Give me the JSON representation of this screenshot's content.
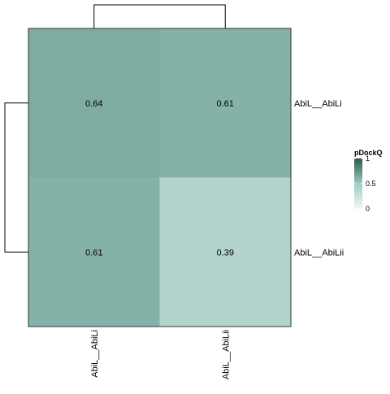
{
  "chart_data": {
    "type": "heatmap",
    "rows": [
      "AbiL__AbiLi",
      "AbiL__AbiLii"
    ],
    "columns": [
      "AbiL__AbiLi",
      "AbiL__AbiLii"
    ],
    "values": [
      [
        0.64,
        0.61
      ],
      [
        0.61,
        0.39
      ]
    ],
    "cell_labels": [
      [
        "0.64",
        "0.61"
      ],
      [
        "0.61",
        "0.39"
      ]
    ],
    "legend": {
      "title": "pDockQ",
      "ticks": [
        "1",
        "0.5",
        "0"
      ],
      "tick_values": [
        1,
        0.5,
        0
      ],
      "range": [
        0,
        1
      ],
      "colors": [
        "#f4f6f6",
        "#9fcbc2",
        "#2b5b4b"
      ]
    },
    "row_dendrogram": true,
    "column_dendrogram": true
  }
}
